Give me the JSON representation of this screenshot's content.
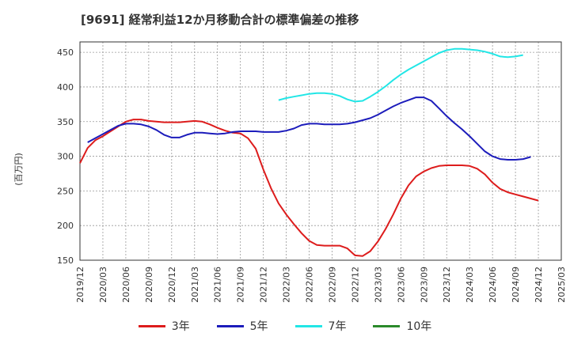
{
  "chart_data": {
    "type": "line",
    "title": "[9691]  経常利益12か月移動合計の標準偏差の推移",
    "ylabel": "(百万円)",
    "ylim": [
      150,
      465
    ],
    "yticks": [
      150,
      200,
      250,
      300,
      350,
      400,
      450
    ],
    "x_start": "2019-12",
    "x_end": "2025-03",
    "xticks": [
      "2019/12",
      "2020/03",
      "2020/06",
      "2020/09",
      "2020/12",
      "2021/03",
      "2021/06",
      "2021/09",
      "2021/12",
      "2022/03",
      "2022/06",
      "2022/09",
      "2022/12",
      "2023/03",
      "2023/06",
      "2023/09",
      "2023/12",
      "2024/03",
      "2024/06",
      "2024/09",
      "2024/12",
      "2025/03"
    ],
    "grid": true,
    "legend_position": "bottom",
    "series": [
      {
        "name": "3年",
        "color": "#dd1c1c",
        "start": "2019-12",
        "values": [
          290,
          312,
          323,
          329,
          336,
          343,
          350,
          353,
          353,
          351,
          350,
          349,
          349,
          349,
          350,
          351,
          350,
          346,
          341,
          337,
          334,
          333,
          326,
          311,
          281,
          254,
          232,
          216,
          202,
          189,
          178,
          172,
          171,
          171,
          171,
          167,
          157,
          156,
          163,
          177,
          195,
          216,
          239,
          258,
          271,
          278,
          283,
          286,
          287,
          287,
          287,
          286,
          282,
          274,
          262,
          253,
          248,
          245,
          242,
          239,
          236
        ]
      },
      {
        "name": "5年",
        "color": "#1c1cbb",
        "start": "2020-01",
        "values": [
          320,
          326,
          332,
          338,
          344,
          347,
          347,
          346,
          343,
          338,
          331,
          327,
          327,
          331,
          334,
          334,
          333,
          332,
          333,
          335,
          336,
          336,
          336,
          335,
          335,
          335,
          337,
          340,
          345,
          347,
          347,
          346,
          346,
          346,
          347,
          349,
          352,
          355,
          360,
          366,
          372,
          377,
          381,
          385,
          385,
          380,
          369,
          358,
          348,
          339,
          329,
          318,
          307,
          300,
          296,
          295,
          295,
          296,
          299
        ]
      },
      {
        "name": "7年",
        "color": "#22e6e6",
        "start": "2022-02",
        "values": [
          381,
          384,
          386,
          388,
          390,
          391,
          391,
          390,
          387,
          382,
          379,
          380,
          386,
          393,
          401,
          410,
          418,
          425,
          431,
          437,
          443,
          449,
          453,
          455,
          455,
          454,
          453,
          451,
          448,
          444,
          443,
          444,
          446
        ]
      },
      {
        "name": "10年",
        "color": "#2a8a2a",
        "values": []
      }
    ]
  }
}
